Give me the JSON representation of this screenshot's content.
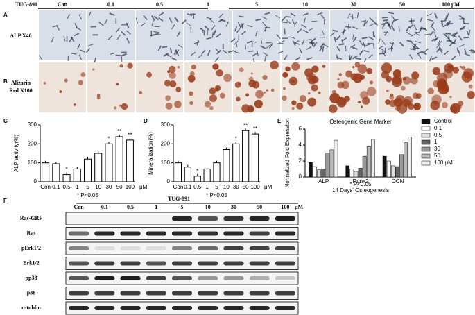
{
  "header": {
    "compound": "TUG-891",
    "doses": [
      "Con",
      "0.1",
      "0.5",
      "1",
      "5",
      "10",
      "30",
      "50",
      "100  μM"
    ]
  },
  "panels": {
    "A": {
      "letter": "A",
      "label": "ALP X40"
    },
    "B": {
      "letter": "B",
      "label": "Alizarin Red X100"
    },
    "C": {
      "letter": "C"
    },
    "D": {
      "letter": "D"
    },
    "E": {
      "letter": "E"
    },
    "F": {
      "letter": "F",
      "compound": "TUG-891",
      "lanes": [
        "Con",
        "0.1",
        "0.5",
        "1",
        "5",
        "10",
        "30",
        "50",
        "100"
      ],
      "unit": "μM",
      "rows": [
        "Ras-GRF",
        "Ras",
        "pErk1/2",
        "Erk1/2",
        "pp38",
        "p38",
        "α-tublin"
      ]
    }
  },
  "chart_data": [
    {
      "type": "bar",
      "y_label": "ALP activity(%)",
      "categories": [
        "Con",
        "0.1",
        "0.5",
        "1",
        "5",
        "10",
        "30",
        "50",
        "100"
      ],
      "x_unit": "μM",
      "values": [
        100,
        95,
        38,
        68,
        120,
        150,
        200,
        238,
        220
      ],
      "color": "#ffffff",
      "ylim": [
        0,
        300
      ],
      "yticks": [
        0,
        100,
        200,
        300
      ],
      "annotations": [
        {
          "category": "0.5",
          "text": "*"
        },
        {
          "category": "30",
          "text": "*"
        },
        {
          "category": "50",
          "text": "**"
        },
        {
          "category": "100",
          "text": "**"
        }
      ],
      "note": "* P<0.05"
    },
    {
      "type": "bar",
      "y_label": "Mineralization(%)",
      "categories": [
        "Con",
        "0.1",
        "0.5",
        "1",
        "5",
        "10",
        "30",
        "50",
        "100"
      ],
      "x_unit": "μM",
      "values": [
        100,
        78,
        30,
        68,
        100,
        170,
        200,
        270,
        252
      ],
      "color": "#ffffff",
      "ylim": [
        0,
        300
      ],
      "yticks": [
        0,
        100,
        200,
        300
      ],
      "annotations": [
        {
          "category": "0.5",
          "text": "*"
        },
        {
          "category": "30",
          "text": "*"
        },
        {
          "category": "50",
          "text": "**"
        },
        {
          "category": "100",
          "text": "**"
        }
      ],
      "note": "* P<0.05"
    },
    {
      "type": "grouped-bar",
      "title": "Osteogenic Gene Marker",
      "y_label": "Normalized Fold Expression",
      "x_label": "14 Days' Osteogenesis",
      "note": "* P<0.05",
      "categories": [
        "ALP",
        "Runx2",
        "OCN"
      ],
      "ylim": [
        0,
        6
      ],
      "yticks": [
        0,
        2,
        4,
        6
      ],
      "series": [
        {
          "name": "Control",
          "color": "#111111",
          "values": [
            1.8,
            1.4,
            2.6
          ]
        },
        {
          "name": "0.1",
          "color": "#ffffff",
          "values": [
            1.3,
            1.0,
            2.0
          ]
        },
        {
          "name": "0.5",
          "color": "#dddddd",
          "values": [
            0.9,
            0.7,
            1.4
          ]
        },
        {
          "name": "1",
          "color": "#666666",
          "values": [
            1.0,
            1.1,
            1.3
          ]
        },
        {
          "name": "30",
          "color": "#999999",
          "values": [
            3.0,
            2.6,
            2.8
          ]
        },
        {
          "name": "50",
          "color": "#bbbbbb",
          "values": [
            3.4,
            3.8,
            4.3
          ]
        },
        {
          "name": "100 μM",
          "color": "#eeeeee",
          "values": [
            4.6,
            4.7,
            5.0
          ]
        }
      ]
    }
  ]
}
